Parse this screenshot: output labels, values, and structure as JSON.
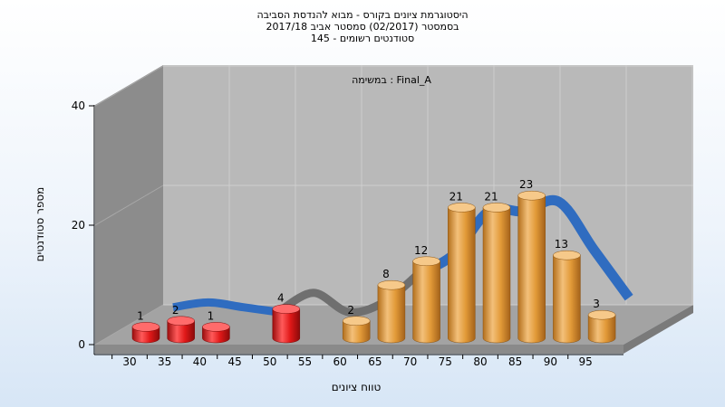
{
  "header": {
    "line1": "היסטוגרמת ציונים בקורס - מבוא להנדסת הסביבה",
    "line2": "בסמסטר  (02/2017)  סמסטר אביב 2017/18",
    "line3": "סטודנטים רשומים - 145"
  },
  "chart_data": {
    "type": "bar",
    "title": "היסטוגרמת ציונים בקורס - מבוא להנדסת הסביבה",
    "subtitle": "בסמסטר  (02/2017)  סמסטר אביב 2017/18 | סטודנטים רשומים - 145",
    "annotation": "במשימה : Final_A",
    "xlabel": "טווח ציונים",
    "ylabel": "מספר סטודנטים",
    "ylim": [
      0,
      40
    ],
    "yticks": [
      0,
      20,
      40
    ],
    "categories": [
      "30",
      "35",
      "40",
      "45",
      "50",
      "55",
      "60",
      "65",
      "70",
      "75",
      "80",
      "85",
      "90",
      "95"
    ],
    "values": [
      1,
      2,
      1,
      0,
      4,
      0,
      2,
      8,
      12,
      21,
      21,
      23,
      13,
      3
    ],
    "colors": {
      "fail": "#e01818",
      "pass": "#e7a33e",
      "curve_blue": "#2f6cc0",
      "curve_gray": "#6f6f6f",
      "wall_back": "#b8b8b8",
      "wall_side": "#8c8c8c",
      "floor": "#a6a6a6"
    },
    "grid": true,
    "style": "3d-cylinder"
  }
}
